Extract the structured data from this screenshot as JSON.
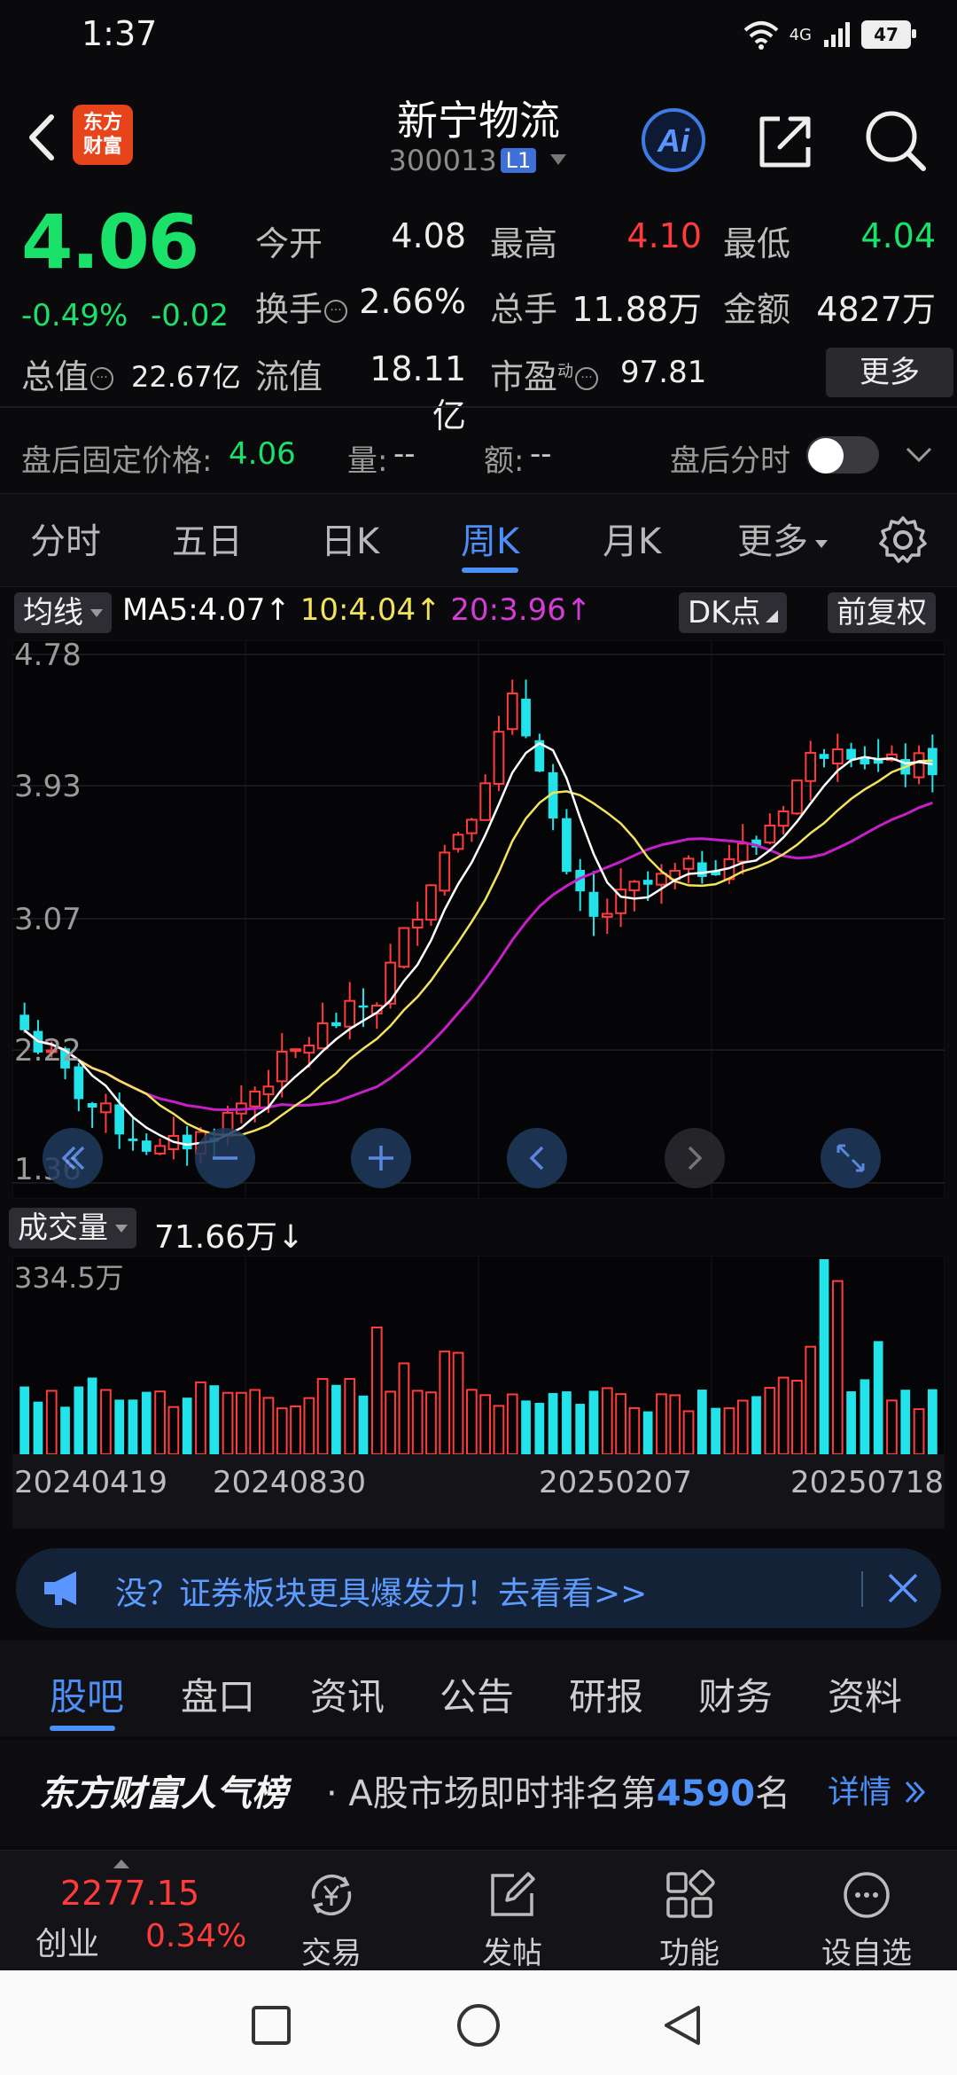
{
  "status": {
    "time": "1:37",
    "network": "4G",
    "battery": "47"
  },
  "header": {
    "logo_line1": "东方",
    "logo_line2": "财富",
    "name": "新宁物流",
    "code": "300013",
    "level_badge": "L1"
  },
  "quote": {
    "price": "4.06",
    "change_pct": "-0.49%",
    "change_abs": "-0.02",
    "open_label": "今开",
    "open": "4.08",
    "high_label": "最高",
    "high": "4.10",
    "low_label": "最低",
    "low": "4.04",
    "turnover_label": "换手",
    "turnover": "2.66%",
    "volume_label": "总手",
    "volume": "11.88万",
    "amount_label": "金额",
    "amount": "4827万",
    "mktcap_label": "总值",
    "mktcap": "22.67亿",
    "float_label": "流值",
    "float_cap": "18.11亿",
    "pe_label": "市盈",
    "pe_sup": "动",
    "pe": "97.81",
    "more_label": "更多"
  },
  "after_hours": {
    "fixed_price_label": "盘后固定价格:",
    "fixed_price": "4.06",
    "vol_label": "量:",
    "vol": "--",
    "amt_label": "额:",
    "amt": "--",
    "intraday_label": "盘后分时"
  },
  "period_tabs": [
    "分时",
    "五日",
    "日K",
    "周K",
    "月K",
    "更多"
  ],
  "active_period": "周K",
  "ma_bar": {
    "chip": "均线",
    "ma5": "MA5:4.07↑",
    "ma10": "10:4.04↑",
    "ma20": "20:3.96↑",
    "dk_label": "DK点",
    "adjust_label": "前复权"
  },
  "colors": {
    "up": "#ff3b3b",
    "down": "#19e16a",
    "candle_down": "#23e3ea",
    "ma5": "#ffffff",
    "ma10": "#f2e35c",
    "ma20": "#c51fc7",
    "accent": "#4b8ff7"
  },
  "chart_data": {
    "type": "candlestick",
    "y_ticks": [
      "4.78",
      "3.93",
      "3.07",
      "2.22",
      "1.36"
    ],
    "ylim": [
      1.36,
      4.78
    ],
    "x_ticks": [
      "20240419",
      "20240830",
      "20250207",
      "20250718"
    ],
    "candles_count": 68,
    "volume_label": "成交量",
    "volume_value": "71.66万↓",
    "volume_max_label": "334.5万"
  },
  "controls": [
    "double-left",
    "minus",
    "plus",
    "left",
    "right",
    "expand"
  ],
  "banner": {
    "text": "没？证券板块更具爆发力！去看看>>"
  },
  "content_tabs": [
    "股吧",
    "盘口",
    "资讯",
    "公告",
    "研报",
    "财务",
    "资料"
  ],
  "active_content_tab": "股吧",
  "popularity": {
    "brand": "东方财富人气榜",
    "prefix": "· A股市场即时排名第",
    "rank": "4590",
    "suffix": "名",
    "detail": "详情"
  },
  "toolbar": {
    "index_value": "2277.15",
    "index_name": "创业",
    "index_pct": "0.34%",
    "items": [
      "交易",
      "发帖",
      "功能",
      "设自选"
    ]
  }
}
